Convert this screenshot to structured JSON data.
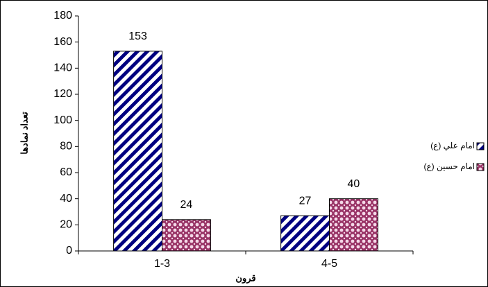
{
  "chart_data": {
    "type": "bar",
    "x_label": "قرون",
    "y_label": "تعداد نمادها",
    "categories": [
      "1-3",
      "4-5"
    ],
    "series": [
      {
        "name": "امام علي (ع)",
        "color": "#000080",
        "values": [
          153,
          27
        ]
      },
      {
        "name": "امام حسين (ع)",
        "color": "#993366",
        "values": [
          24,
          40
        ]
      }
    ],
    "ylim": [
      0,
      180
    ],
    "yticks": [
      0,
      20,
      40,
      60,
      80,
      100,
      120,
      140,
      160,
      180
    ],
    "legend": "right"
  }
}
